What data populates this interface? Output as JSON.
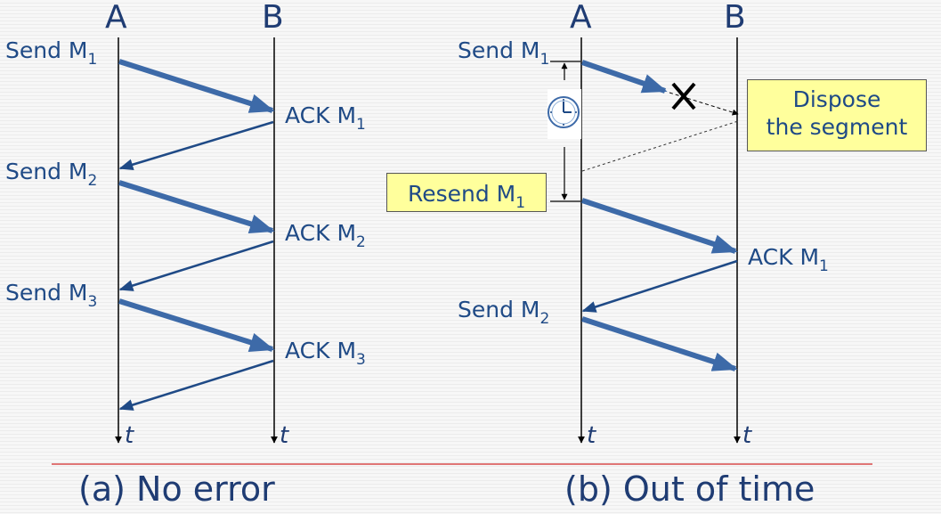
{
  "panel_a": {
    "host_a": "A",
    "host_b": "B",
    "sends": [
      {
        "text": "Send M",
        "sub": "1"
      },
      {
        "text": "Send M",
        "sub": "2"
      },
      {
        "text": "Send M",
        "sub": "3"
      }
    ],
    "acks": [
      {
        "text": "ACK M",
        "sub": "1"
      },
      {
        "text": "ACK M",
        "sub": "2"
      },
      {
        "text": "ACK M",
        "sub": "3"
      }
    ],
    "time_a": "t",
    "time_b": "t",
    "caption": "(a) No error"
  },
  "panel_b": {
    "host_a": "A",
    "host_b": "B",
    "send1": {
      "text": "Send M",
      "sub": "1"
    },
    "resend": {
      "text": "Resend M",
      "sub": "1"
    },
    "dispose_line1": "Dispose",
    "dispose_line2": "the segment",
    "ack1": {
      "text": "ACK M",
      "sub": "1"
    },
    "send2": {
      "text": "Send M",
      "sub": "2"
    },
    "time_a": "t",
    "time_b": "t",
    "caption": "(b) Out of time"
  },
  "colors": {
    "arrow": "#3d6aa8",
    "text": "#1f4a86",
    "separator": "#d94c4c",
    "callout_fill": "#ffff9c",
    "lost_mark": "#000000"
  },
  "icons": {
    "timer": "clock-icon",
    "lost": "cross-icon"
  }
}
